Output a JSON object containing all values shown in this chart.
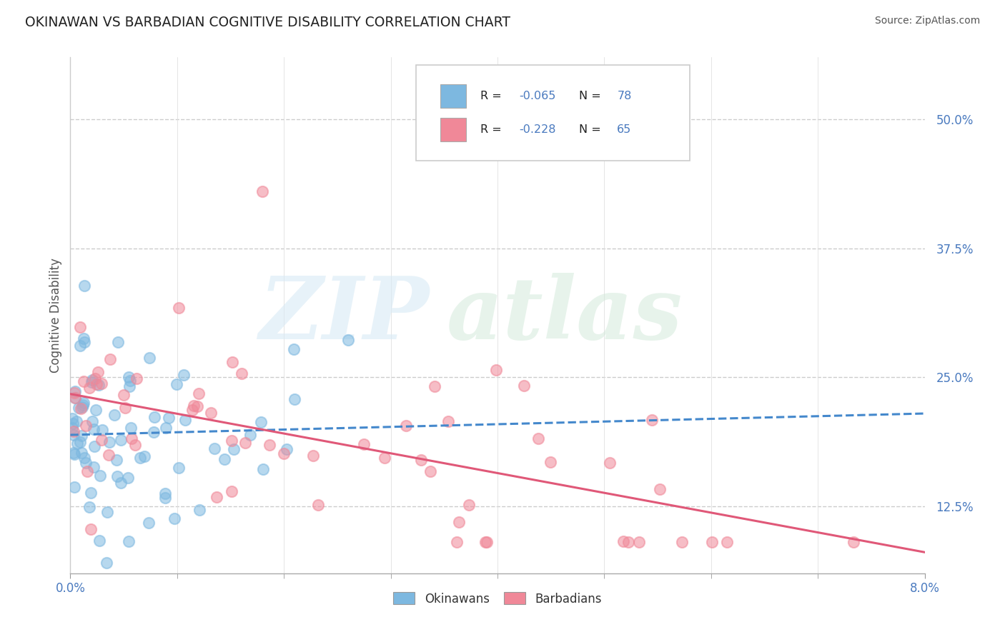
{
  "title": "OKINAWAN VS BARBADIAN COGNITIVE DISABILITY CORRELATION CHART",
  "source": "Source: ZipAtlas.com",
  "ylabel": "Cognitive Disability",
  "ytick_labels": [
    "12.5%",
    "25.0%",
    "37.5%",
    "50.0%"
  ],
  "ytick_vals": [
    0.125,
    0.25,
    0.375,
    0.5
  ],
  "xlim": [
    0.0,
    0.08
  ],
  "ylim": [
    0.06,
    0.56
  ],
  "okinawan_color": "#7db8e0",
  "barbadian_color": "#f08898",
  "trend_okinawan_color": "#4488cc",
  "trend_barbadian_color": "#e05878",
  "background_color": "#ffffff",
  "grid_color": "#cccccc",
  "tick_color": "#4a7abf",
  "r1": "-0.065",
  "n1": "78",
  "r2": "-0.228",
  "n2": "65"
}
